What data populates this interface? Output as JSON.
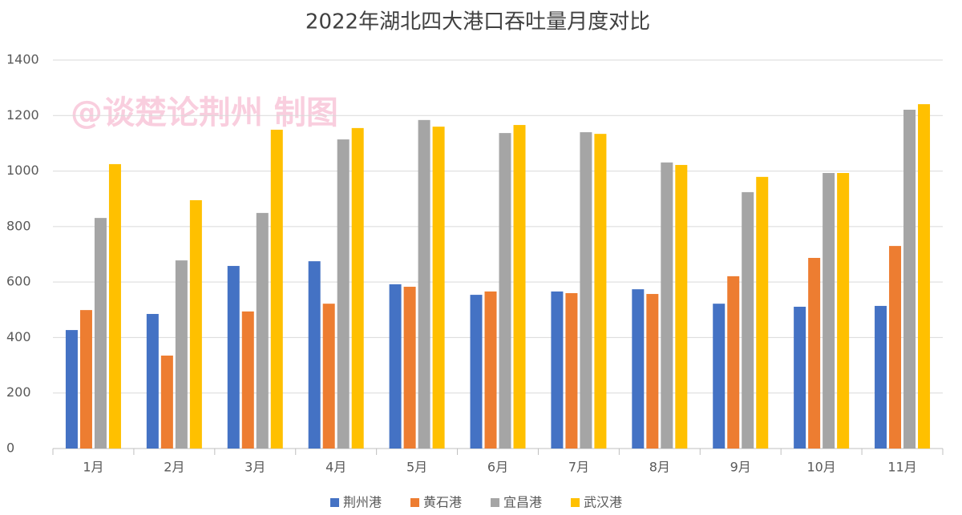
{
  "chart_data": {
    "type": "bar",
    "title": "2022年湖北四大港口吞吐量月度对比",
    "watermark": "@谈楚论荆州 制图",
    "categories": [
      "1月",
      "2月",
      "3月",
      "4月",
      "5月",
      "6月",
      "7月",
      "8月",
      "9月",
      "10月",
      "11月"
    ],
    "series": [
      {
        "name": "荆州港",
        "color": "#4472c4",
        "values": [
          427,
          485,
          658,
          675,
          592,
          554,
          566,
          574,
          522,
          511,
          514
        ]
      },
      {
        "name": "黄石港",
        "color": "#ed7d31",
        "values": [
          499,
          335,
          494,
          522,
          583,
          566,
          560,
          557,
          621,
          687,
          730
        ]
      },
      {
        "name": "宜昌港",
        "color": "#a5a5a5",
        "values": [
          831,
          678,
          849,
          1114,
          1184,
          1137,
          1140,
          1031,
          924,
          993,
          1221
        ]
      },
      {
        "name": "武汉港",
        "color": "#ffc000",
        "values": [
          1025,
          895,
          1149,
          1155,
          1160,
          1166,
          1134,
          1022,
          979,
          993,
          1241
        ]
      }
    ],
    "ylim": [
      0,
      1400
    ],
    "yticks": [
      0,
      200,
      400,
      600,
      800,
      1000,
      1200,
      1400
    ],
    "grid": true,
    "legend": "bottom"
  }
}
